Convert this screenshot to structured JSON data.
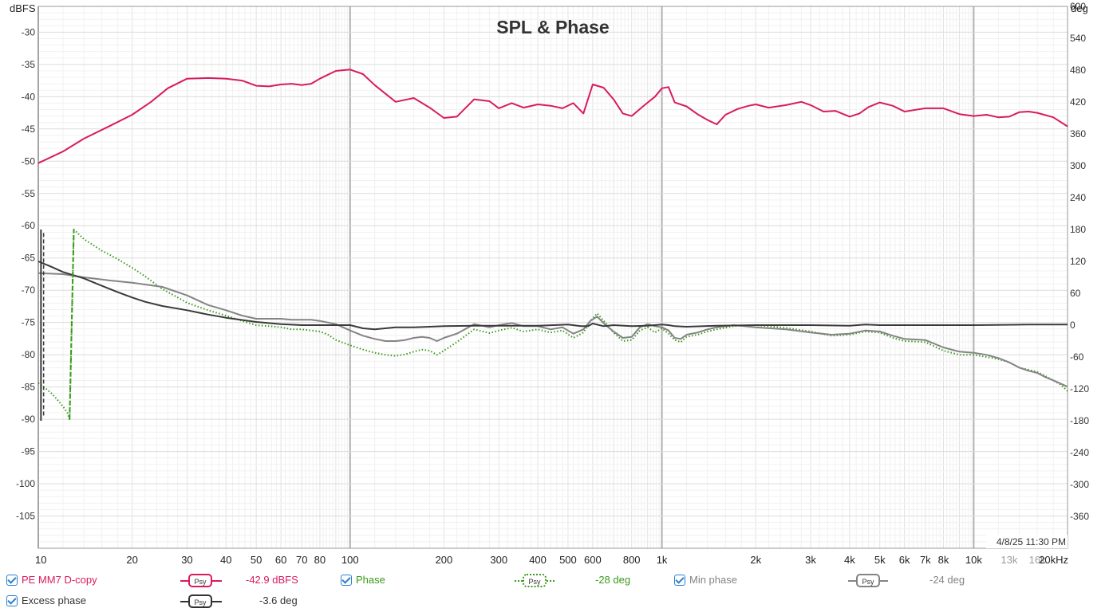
{
  "chart_data": {
    "type": "line",
    "title": "SPL & Phase",
    "ylabel": "dBFS",
    "y2label": "deg",
    "xlim": [
      10,
      20000
    ],
    "ylim": [
      -110,
      -26
    ],
    "y2lim": [
      -420,
      600
    ],
    "x_scale": "log",
    "grid": true,
    "x_tick_labels": [
      "10",
      "20",
      "30",
      "40",
      "50",
      "60",
      "70",
      "80",
      "100",
      "200",
      "300",
      "400",
      "500",
      "600",
      "800",
      "1k",
      "2k",
      "3k",
      "4k",
      "5k",
      "6k",
      "7k",
      "8k",
      "10k",
      "13k",
      "16k",
      "20kHz"
    ],
    "x_tick_values": [
      10,
      20,
      30,
      40,
      50,
      60,
      70,
      80,
      100,
      200,
      300,
      400,
      500,
      600,
      800,
      1000,
      2000,
      3000,
      4000,
      5000,
      6000,
      7000,
      8000,
      10000,
      13000,
      16000,
      20000
    ],
    "y_tick_labels": [
      "-30",
      "-35",
      "-40",
      "-45",
      "-50",
      "-55",
      "-60",
      "-65",
      "-70",
      "-75",
      "-80",
      "-85",
      "-90",
      "-95",
      "-100",
      "-105"
    ],
    "y2_tick_labels": [
      "600",
      "540",
      "480",
      "420",
      "360",
      "300",
      "240",
      "180",
      "120",
      "60",
      "0",
      "-60",
      "-120",
      "-180",
      "-240",
      "-300",
      "-360"
    ],
    "timestamp": "4/8/25 11:30 PM",
    "series": [
      {
        "name": "PE MM7 D-copy",
        "axis": "left",
        "color": "#d81b60",
        "style": "solid",
        "x": [
          10,
          12,
          14,
          17,
          20,
          23,
          26,
          30,
          35,
          40,
          45,
          50,
          55,
          60,
          65,
          70,
          75,
          80,
          90,
          100,
          110,
          120,
          140,
          160,
          180,
          200,
          220,
          250,
          280,
          300,
          330,
          360,
          400,
          440,
          480,
          520,
          560,
          600,
          650,
          700,
          750,
          800,
          870,
          950,
          1000,
          1050,
          1100,
          1200,
          1300,
          1400,
          1500,
          1600,
          1750,
          1900,
          2000,
          2200,
          2500,
          2800,
          3000,
          3300,
          3600,
          4000,
          4300,
          4600,
          5000,
          5500,
          6000,
          7000,
          8000,
          9000,
          10000,
          11000,
          12000,
          13000,
          14000,
          15000,
          16000,
          18000,
          20000
        ],
        "y": [
          -50.3,
          -48.5,
          -46.5,
          -44.5,
          -42.8,
          -40.8,
          -38.7,
          -37.2,
          -37.1,
          -37.2,
          -37.5,
          -38.3,
          -38.4,
          -38.1,
          -38.0,
          -38.2,
          -38.0,
          -37.2,
          -36.0,
          -35.8,
          -36.5,
          -38.2,
          -40.8,
          -40.2,
          -41.7,
          -43.3,
          -43.1,
          -40.4,
          -40.7,
          -41.8,
          -41.0,
          -41.7,
          -41.2,
          -41.4,
          -41.8,
          -41.0,
          -42.6,
          -38.1,
          -38.6,
          -40.4,
          -42.6,
          -43.0,
          -41.5,
          -40.0,
          -38.7,
          -38.5,
          -40.9,
          -41.5,
          -42.7,
          -43.6,
          -44.3,
          -42.8,
          -41.9,
          -41.4,
          -41.2,
          -41.7,
          -41.3,
          -40.8,
          -41.3,
          -42.3,
          -42.2,
          -43.1,
          -42.6,
          -41.6,
          -40.9,
          -41.4,
          -42.3,
          -41.8,
          -41.8,
          -42.7,
          -43.0,
          -42.8,
          -43.2,
          -43.1,
          -42.4,
          -42.3,
          -42.5,
          -43.2,
          -44.6
        ]
      },
      {
        "name": "Phase",
        "axis": "right",
        "color": "#3a9a19",
        "style": "dotted",
        "x": [
          10,
          10.5,
          11,
          11.5,
          12,
          12.4,
          12.6,
          13,
          14,
          16,
          18,
          20,
          22,
          25,
          28,
          30,
          35,
          40,
          45,
          50,
          55,
          60,
          65,
          70,
          75,
          80,
          85,
          90,
          100,
          110,
          120,
          130,
          140,
          150,
          160,
          170,
          180,
          190,
          200,
          220,
          250,
          280,
          300,
          330,
          360,
          400,
          440,
          480,
          520,
          560,
          590,
          620,
          660,
          700,
          750,
          800,
          850,
          900,
          950,
          1000,
          1050,
          1100,
          1150,
          1200,
          1300,
          1400,
          1500,
          1700,
          2000,
          2500,
          3000,
          3500,
          4000,
          4500,
          5000,
          5500,
          6000,
          7000,
          8000,
          9000,
          10000,
          11000,
          12000,
          13000,
          14000,
          15000,
          16000,
          17000,
          18000,
          19000,
          20000
        ],
        "y": [
          -109,
          -118,
          -128,
          -140,
          -153,
          -165,
          -178,
          180,
          162,
          140,
          124,
          108,
          92,
          68,
          52,
          42,
          28,
          18,
          8,
          0,
          -2,
          -4,
          -8,
          -8,
          -10,
          -12,
          -18,
          -28,
          -38,
          -46,
          -52,
          -56,
          -58,
          -55,
          -50,
          -46,
          -48,
          -56,
          -48,
          -32,
          -8,
          -15,
          -10,
          -5,
          -12,
          -8,
          -14,
          -10,
          -24,
          -14,
          8,
          22,
          4,
          -14,
          -30,
          -28,
          -10,
          -4,
          -14,
          -6,
          -16,
          -28,
          -32,
          -22,
          -18,
          -12,
          -8,
          -2,
          0,
          -5,
          -12,
          -20,
          -18,
          -12,
          -14,
          -24,
          -30,
          -32,
          -48,
          -56,
          -56,
          -60,
          -64,
          -70,
          -80,
          -84,
          -88,
          -96,
          -104,
          -112,
          -124
        ]
      },
      {
        "name": "Min phase",
        "axis": "right",
        "color": "#848484",
        "style": "solid",
        "x": [
          10,
          12,
          14,
          17,
          20,
          25,
          30,
          35,
          40,
          45,
          50,
          55,
          60,
          65,
          70,
          75,
          80,
          90,
          100,
          110,
          120,
          130,
          140,
          150,
          160,
          170,
          180,
          190,
          200,
          220,
          250,
          280,
          300,
          330,
          360,
          400,
          440,
          480,
          520,
          560,
          590,
          620,
          660,
          700,
          750,
          800,
          850,
          900,
          950,
          1000,
          1050,
          1100,
          1150,
          1200,
          1300,
          1400,
          1500,
          1700,
          2000,
          2500,
          3000,
          3500,
          4000,
          4500,
          5000,
          5500,
          6000,
          7000,
          8000,
          9000,
          10000,
          11000,
          12000,
          13000,
          14000,
          15000,
          16000,
          17000,
          18000,
          19000,
          20000
        ],
        "y": [
          98,
          96,
          90,
          84,
          80,
          72,
          56,
          38,
          28,
          18,
          12,
          12,
          12,
          10,
          10,
          10,
          8,
          2,
          -10,
          -20,
          -26,
          -30,
          -30,
          -28,
          -24,
          -22,
          -24,
          -30,
          -24,
          -16,
          2,
          -4,
          0,
          4,
          -2,
          -2,
          -8,
          -4,
          -16,
          -8,
          8,
          16,
          0,
          -12,
          -24,
          -22,
          -4,
          2,
          -2,
          -4,
          -10,
          -24,
          -26,
          -18,
          -14,
          -8,
          -4,
          0,
          -4,
          -8,
          -14,
          -18,
          -16,
          -10,
          -12,
          -20,
          -26,
          -28,
          -42,
          -50,
          -52,
          -56,
          -62,
          -70,
          -80,
          -86,
          -90,
          -98,
          -104,
          -110,
          -116
        ]
      },
      {
        "name": "Excess phase",
        "axis": "right",
        "color": "#3a3a3a",
        "style": "solid",
        "x": [
          10,
          11,
          12,
          14,
          16,
          18,
          20,
          22,
          25,
          30,
          35,
          40,
          50,
          60,
          70,
          80,
          90,
          100,
          110,
          120,
          140,
          160,
          180,
          200,
          250,
          300,
          350,
          400,
          450,
          500,
          550,
          580,
          600,
          650,
          700,
          800,
          900,
          1000,
          1050,
          1100,
          1200,
          1500,
          2000,
          2500,
          3000,
          4000,
          4500,
          5000,
          6000,
          8000,
          10000,
          15000,
          20000
        ],
        "y": [
          120,
          110,
          100,
          88,
          74,
          62,
          52,
          44,
          36,
          28,
          20,
          14,
          6,
          2,
          0,
          0,
          0,
          0,
          -6,
          -8,
          -4,
          -4,
          -3,
          -2,
          -1,
          -1,
          -1,
          -1,
          0,
          1,
          -2,
          -2,
          3,
          -2,
          0,
          -2,
          -1,
          1,
          0,
          -2,
          -3,
          -1,
          0,
          0,
          0,
          -1,
          1,
          0,
          0,
          0,
          0,
          1,
          1
        ]
      }
    ]
  },
  "legend": {
    "items": [
      {
        "name": "PE MM7 D-copy",
        "value": "-42.9 dBFS",
        "psy": "Psy"
      },
      {
        "name": "Phase",
        "value": "-28 deg",
        "psy": "Psy"
      },
      {
        "name": "Min phase",
        "value": "-24 deg",
        "psy": "Psy"
      },
      {
        "name": "Excess phase",
        "value": "-3.6 deg",
        "psy": "Psy"
      }
    ]
  }
}
